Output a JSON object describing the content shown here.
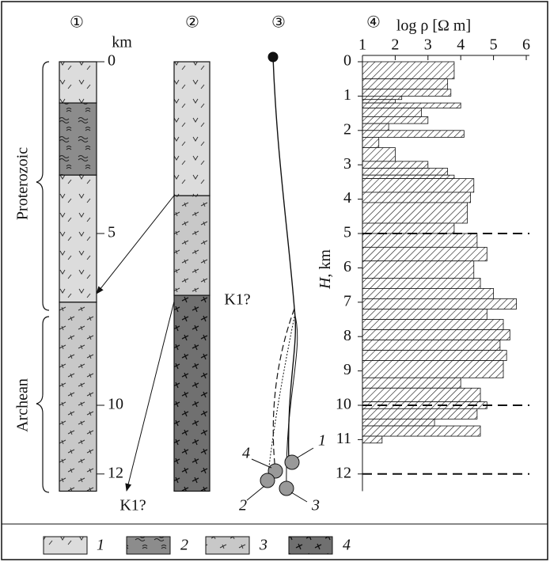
{
  "panels": [
    "①",
    "②",
    "③",
    "④"
  ],
  "column1": {
    "unit": "km",
    "ticks": [
      0,
      5,
      10,
      12
    ],
    "eras": [
      "Proterozoic",
      "Archean"
    ],
    "layers": [
      {
        "top": 0,
        "bottom": 1.2,
        "rock": 1
      },
      {
        "top": 1.2,
        "bottom": 3.3,
        "rock": 2
      },
      {
        "top": 3.3,
        "bottom": 7.0,
        "rock": 1
      },
      {
        "top": 7.0,
        "bottom": 12.5,
        "rock": 3
      }
    ],
    "arrow_label": "K1?"
  },
  "column2": {
    "label": "K1?",
    "layers": [
      {
        "top": 0,
        "bottom": 3.9,
        "rock": 1
      },
      {
        "top": 3.9,
        "bottom": 6.8,
        "rock": 3
      },
      {
        "top": 6.8,
        "bottom": 12.5,
        "rock": 4
      }
    ]
  },
  "wells": {
    "labels": [
      "1",
      "2",
      "3",
      "4"
    ]
  },
  "resistivity": {
    "x_label": "log ρ [Ω m]",
    "y_label_italic": "H",
    "y_label_rest": ", km",
    "xlim": [
      1,
      6
    ],
    "xticks": [
      1,
      2,
      3,
      4,
      5,
      6
    ],
    "ylim": [
      0,
      12.5
    ],
    "yticks": [
      0,
      1,
      2,
      3,
      4,
      5,
      6,
      7,
      8,
      9,
      10,
      11,
      12
    ],
    "depth_edges": [
      0,
      0.5,
      0.8,
      1.0,
      1.1,
      1.2,
      1.35,
      1.6,
      1.8,
      2.0,
      2.2,
      2.5,
      2.9,
      3.1,
      3.3,
      3.4,
      3.8,
      4.1,
      4.7,
      5.0,
      5.4,
      5.8,
      6.3,
      6.6,
      6.9,
      7.2,
      7.5,
      7.8,
      8.1,
      8.4,
      8.7,
      9.2,
      9.5,
      9.9,
      10.1,
      10.4,
      10.6,
      10.9,
      11.1
    ],
    "log_rho": [
      3.8,
      3.6,
      3.7,
      2.2,
      2.0,
      4.0,
      2.8,
      3.0,
      1.8,
      4.1,
      1.5,
      2.0,
      3.0,
      3.6,
      3.8,
      4.4,
      4.3,
      4.2,
      3.8,
      4.5,
      4.8,
      4.4,
      4.6,
      5.0,
      5.7,
      4.8,
      5.3,
      5.5,
      5.2,
      5.4,
      5.3,
      4.0,
      4.6,
      4.8,
      4.5,
      3.2,
      4.6,
      1.6
    ],
    "dashed": [
      5,
      10,
      12
    ]
  },
  "legend": [
    "1",
    "2",
    "3",
    "4"
  ]
}
